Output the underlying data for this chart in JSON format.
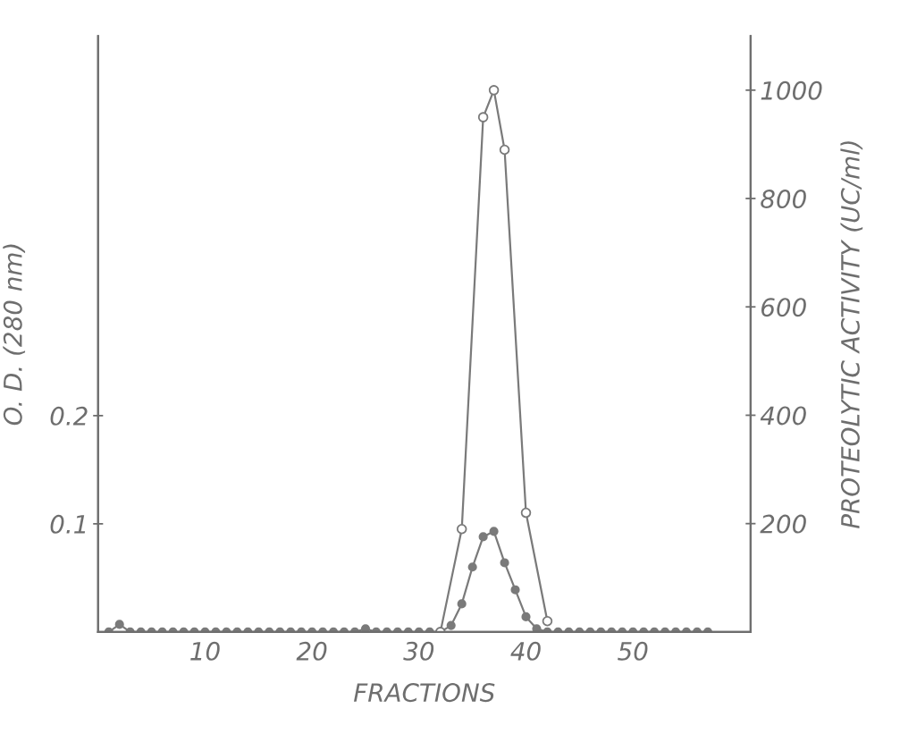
{
  "chart_data": {
    "type": "line",
    "xlabel": "FRACTIONS",
    "ylabel": "O. D. (280 nm)",
    "y2label": "PROTEOLYTIC ACTIVITY (UC/ml)",
    "xlim": [
      0,
      61
    ],
    "xticks": [
      10,
      20,
      30,
      40,
      50
    ],
    "ylim": [
      0,
      0.551
    ],
    "yticks": [
      0.1,
      0.2
    ],
    "y2lim": [
      0,
      1100
    ],
    "y2ticks": [
      200,
      400,
      600,
      800,
      1000
    ],
    "grid": false,
    "legend": false,
    "marker": "circle",
    "line_style": "solid",
    "series": [
      {
        "color": "#7a7a7a",
        "x": [
          1,
          2,
          3,
          4,
          5,
          6,
          7,
          8,
          9,
          10,
          11,
          12,
          13,
          14,
          15,
          16,
          17,
          18,
          19,
          20,
          21,
          22,
          23,
          24,
          25,
          26,
          27,
          28,
          29,
          30,
          31,
          32,
          33,
          34,
          35,
          36,
          37,
          38,
          39,
          40,
          41,
          42,
          43,
          44,
          45,
          46,
          47,
          48,
          49,
          50,
          51,
          52,
          53,
          54,
          55,
          56,
          57
        ],
        "values": [
          0,
          0.007,
          0,
          0,
          0,
          0,
          0,
          0,
          0,
          0,
          0,
          0,
          0,
          0,
          0,
          0,
          0,
          0,
          0,
          0,
          0,
          0,
          0,
          0,
          0.003,
          0,
          0,
          0,
          0,
          0,
          0,
          0,
          0.006,
          0.026,
          0.06,
          0.088,
          0.093,
          0.064,
          0.039,
          0.014,
          0.003,
          0,
          0,
          0,
          0,
          0,
          0,
          0,
          0,
          0,
          0,
          0,
          0,
          0,
          0,
          0,
          0
        ]
      },
      {
        "color": "#7a7a7a",
        "axis": "y2",
        "x": [
          32,
          34,
          36,
          37,
          38,
          40,
          42
        ],
        "values": [
          0,
          190,
          950,
          1000,
          890,
          220,
          20
        ]
      }
    ]
  }
}
